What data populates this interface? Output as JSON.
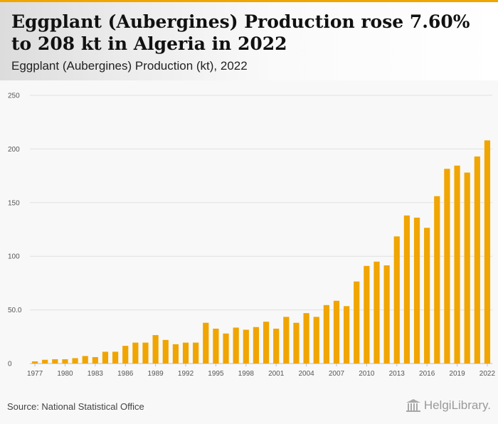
{
  "header": {
    "title": "Eggplant (Aubergines) Production rose 7.60% to 208 kt in Algeria in 2022",
    "subtitle": "Eggplant (Aubergines) Production (kt), 2022"
  },
  "footer": {
    "source": "Source: National Statistical Office",
    "logo_text": "HelgiLibrary."
  },
  "colors": {
    "bar": "#f0a500",
    "accent": "#f0a500",
    "grid": "#e0e0e0"
  },
  "chart_data": {
    "type": "bar",
    "x": [
      1977,
      1978,
      1979,
      1980,
      1981,
      1982,
      1983,
      1984,
      1985,
      1986,
      1987,
      1988,
      1989,
      1990,
      1991,
      1992,
      1993,
      1994,
      1995,
      1996,
      1997,
      1998,
      1999,
      2000,
      2001,
      2002,
      2003,
      2004,
      2005,
      2006,
      2007,
      2008,
      2009,
      2010,
      2011,
      2012,
      2013,
      2014,
      2015,
      2016,
      2017,
      2018,
      2019,
      2020,
      2021,
      2022
    ],
    "values": [
      2,
      3.5,
      4,
      4,
      5,
      7,
      6,
      11,
      11,
      16.5,
      19.5,
      19.5,
      26.5,
      22,
      18,
      19.5,
      19.5,
      38,
      32.5,
      28,
      33.5,
      31.5,
      34,
      39,
      32.5,
      43.5,
      38,
      47,
      43.5,
      54.5,
      58.5,
      53.5,
      76.5,
      91,
      95,
      91.5,
      118.5,
      138,
      136,
      126.5,
      156,
      181.5,
      184.5,
      178,
      193,
      208
    ],
    "x_ticks": [
      "1977",
      "1980",
      "1983",
      "1986",
      "1989",
      "1992",
      "1995",
      "1998",
      "2001",
      "2004",
      "2007",
      "2010",
      "2013",
      "2016",
      "2019",
      "2022"
    ],
    "y_ticks": [
      "0",
      "50.0",
      "100",
      "150",
      "200",
      "250"
    ],
    "ylim": [
      0,
      250
    ],
    "grid": true,
    "legend": "none"
  }
}
